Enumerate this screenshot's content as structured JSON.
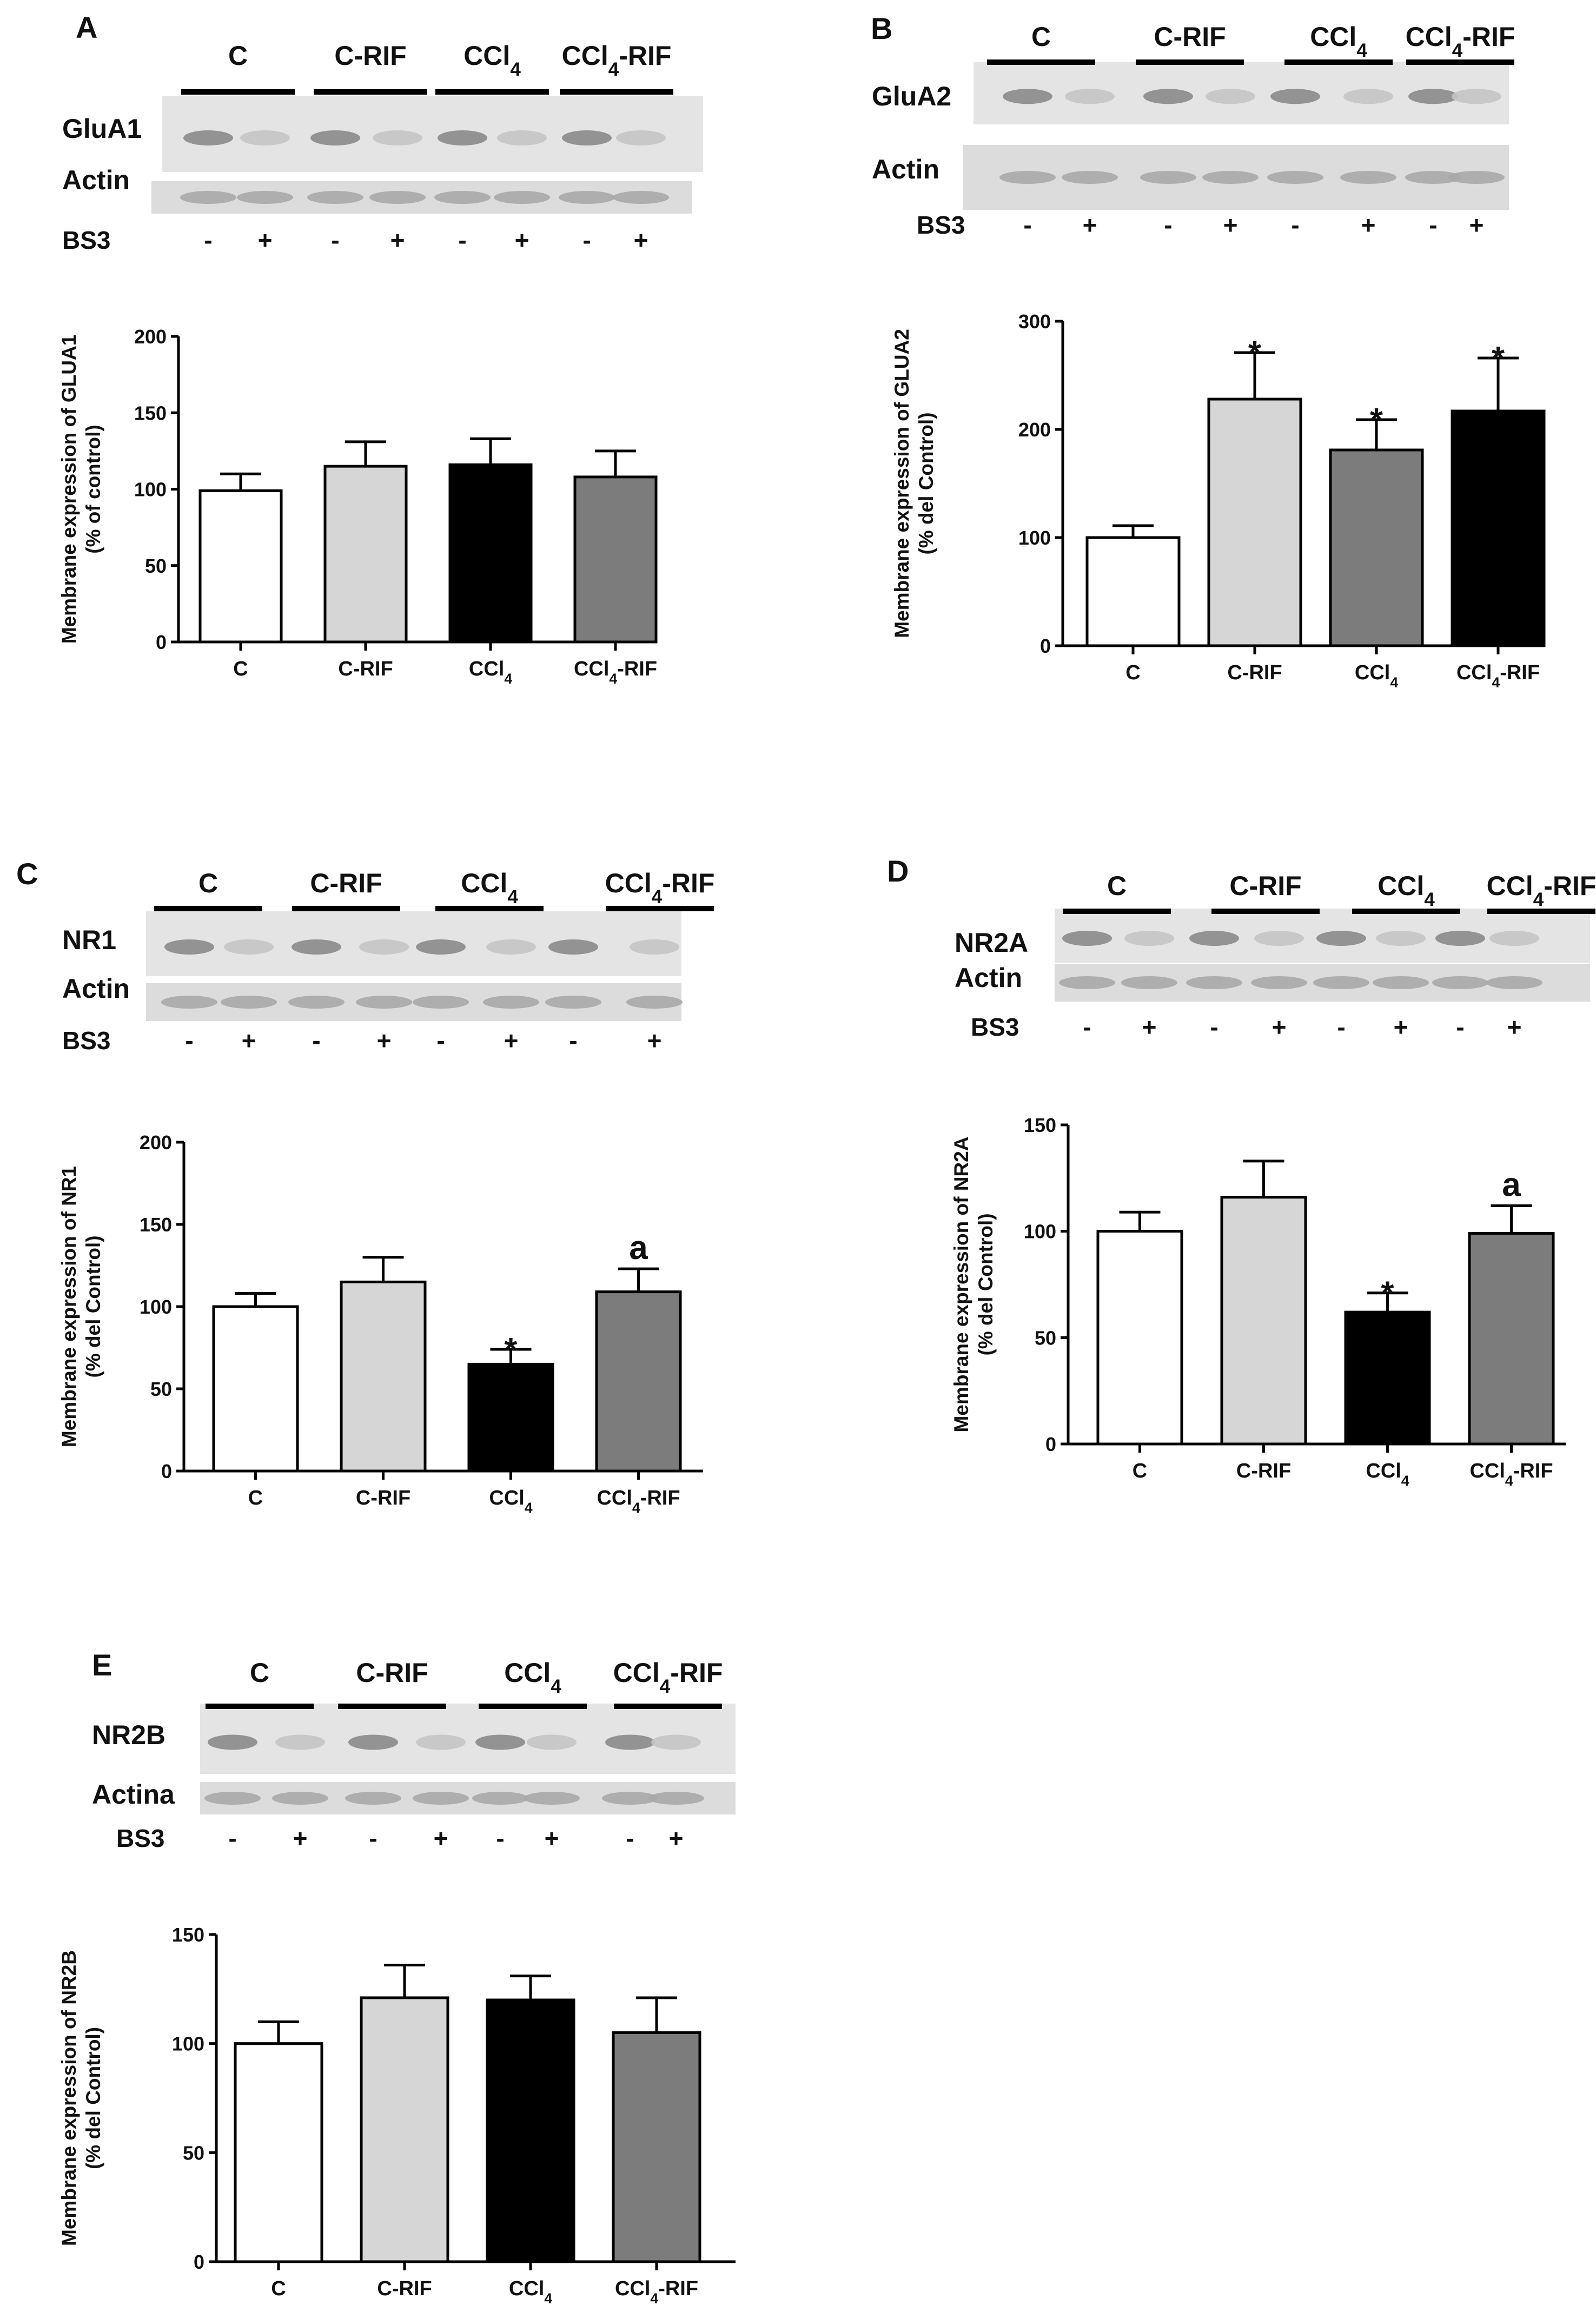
{
  "panels": [
    {
      "id": "A",
      "blot": {
        "groups": [
          "C",
          "C-RIF",
          "CCl4",
          "CCl4-RIF"
        ],
        "bands": [
          "GluA1",
          "Actin"
        ],
        "bs3_label": "BS3",
        "bs3_signs": [
          "-",
          "+",
          "-",
          "+",
          "-",
          "+",
          "-",
          "+"
        ]
      },
      "chart_data": {
        "type": "bar",
        "categories": [
          "C",
          "C-RIF",
          "CCl4",
          "CCl4-RIF"
        ],
        "values": [
          99,
          115,
          116,
          108
        ],
        "errors": [
          11,
          16,
          17,
          17
        ],
        "colors": [
          "#ffffff",
          "#d6d6d6",
          "#000000",
          "#7c7c7c"
        ],
        "annotations": [
          "",
          "",
          "",
          ""
        ],
        "ylabel_line1": "Membrane expression of GLUA1",
        "ylabel_line2": "(% of control)",
        "ylim": [
          0,
          200
        ],
        "yticks": [
          0,
          50,
          100,
          150,
          200
        ]
      }
    },
    {
      "id": "B",
      "blot": {
        "groups": [
          "C",
          "C-RIF",
          "CCl4",
          "CCl4-RIF"
        ],
        "bands": [
          "GluA2",
          "Actin"
        ],
        "bs3_label": "BS3",
        "bs3_signs": [
          "-",
          "+",
          "-",
          "+",
          "-",
          "+",
          "-",
          "+"
        ]
      },
      "chart_data": {
        "type": "bar",
        "categories": [
          "C",
          "C-RIF",
          "CCl4",
          "CCl4-RIF"
        ],
        "values": [
          100,
          228,
          181,
          217
        ],
        "errors": [
          11,
          43,
          28,
          49
        ],
        "colors": [
          "#ffffff",
          "#d6d6d6",
          "#7c7c7c",
          "#000000"
        ],
        "annotations": [
          "",
          "*",
          "*",
          "*"
        ],
        "ylabel_line1": "Membrane expression of GLUA2",
        "ylabel_line2": "(% del Control)",
        "ylim": [
          0,
          300
        ],
        "yticks": [
          0,
          100,
          200,
          300
        ]
      }
    },
    {
      "id": "C",
      "blot": {
        "groups": [
          "C",
          "C-RIF",
          "CCl4",
          "CCl4-RIF"
        ],
        "bands": [
          "NR1",
          "Actin"
        ],
        "bs3_label": "BS3",
        "bs3_signs": [
          "-",
          "+",
          "-",
          "+",
          "-",
          "+",
          "-",
          "+"
        ]
      },
      "chart_data": {
        "type": "bar",
        "categories": [
          "C",
          "C-RIF",
          "CCl4",
          "CCl4-RIF"
        ],
        "values": [
          100,
          115,
          65,
          109
        ],
        "errors": [
          8,
          15,
          9,
          14
        ],
        "colors": [
          "#ffffff",
          "#d6d6d6",
          "#000000",
          "#7c7c7c"
        ],
        "annotations": [
          "",
          "",
          "*",
          "a"
        ],
        "ylabel_line1": "Membrane expression of NR1",
        "ylabel_line2": "(% del Control)",
        "ylim": [
          0,
          200
        ],
        "yticks": [
          0,
          50,
          100,
          150,
          200
        ]
      }
    },
    {
      "id": "D",
      "blot": {
        "groups": [
          "C",
          "C-RIF",
          "CCl4",
          "CCl4-RIF"
        ],
        "bands": [
          "NR2A",
          "Actin"
        ],
        "bs3_label": "BS3",
        "bs3_signs": [
          "-",
          "+",
          "-",
          "+",
          "-",
          "+",
          "-",
          "+"
        ]
      },
      "chart_data": {
        "type": "bar",
        "categories": [
          "C",
          "C-RIF",
          "CCl4",
          "CCl4-RIF"
        ],
        "values": [
          100,
          116,
          62,
          99
        ],
        "errors": [
          9,
          17,
          9,
          13
        ],
        "colors": [
          "#ffffff",
          "#d6d6d6",
          "#000000",
          "#7c7c7c"
        ],
        "annotations": [
          "",
          "",
          "*",
          "a"
        ],
        "ylabel_line1": "Membrane expression of NR2A",
        "ylabel_line2": "(% del Control)",
        "ylim": [
          0,
          150
        ],
        "yticks": [
          0,
          50,
          100,
          150
        ]
      }
    },
    {
      "id": "E",
      "blot": {
        "groups": [
          "C",
          "C-RIF",
          "CCl4",
          "CCl4-RIF"
        ],
        "bands": [
          "NR2B",
          "Actina"
        ],
        "bs3_label": "BS3",
        "bs3_signs": [
          "-",
          "+",
          "-",
          "+",
          "-",
          "+",
          "-",
          "+"
        ]
      },
      "chart_data": {
        "type": "bar",
        "categories": [
          "C",
          "C-RIF",
          "CCl4",
          "CCl4-RIF"
        ],
        "values": [
          100,
          121,
          120,
          105
        ],
        "errors": [
          10,
          15,
          11,
          16
        ],
        "colors": [
          "#ffffff",
          "#d6d6d6",
          "#000000",
          "#7c7c7c"
        ],
        "annotations": [
          "",
          "",
          "",
          ""
        ],
        "ylabel_line1": "Membrane expression of NR2B",
        "ylabel_line2": "(% del Control)",
        "ylim": [
          0,
          150
        ],
        "yticks": [
          0,
          50,
          100,
          150
        ]
      }
    }
  ]
}
